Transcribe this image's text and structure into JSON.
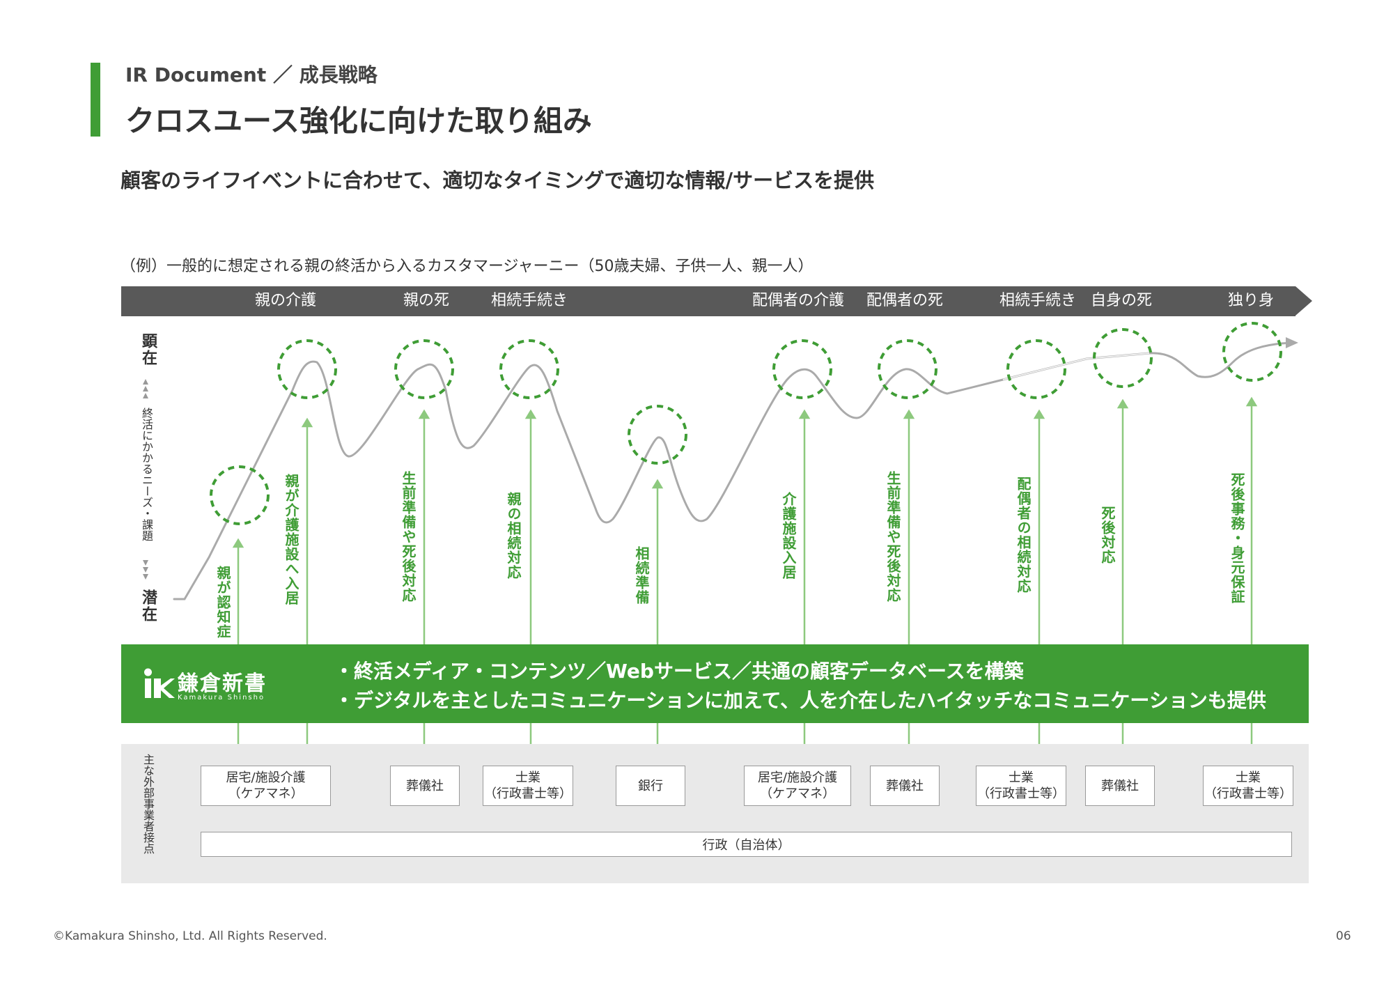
{
  "header": {
    "breadcrumb": "IR Document ／ 成長戦略",
    "title": "クロスユース強化に向けた取り組み",
    "subtitle": "顧客のライフイベントに合わせて、適切なタイミングで適切な情報/サービスを提供"
  },
  "journey": {
    "note": "（例）一般的に想定される親の終活から入るカスタマージャーニー（50歳夫婦、子供一人、親一人）",
    "events": [
      "親の介護",
      "親の死",
      "相続手続き",
      "配偶者の介護",
      "配偶者の死",
      "相続手続き",
      "自身の死",
      "独り身"
    ],
    "axis": {
      "top": "顕在",
      "bottom": "潜在",
      "middle": "終活にかかるニーズ・課題"
    },
    "needs": [
      "親が認知症",
      "親が介護施設へ入居",
      "生前準備や死後対応",
      "親の相続対応",
      "相続準備",
      "介護施設入居",
      "生前準備や死後対応",
      "配偶者の相続対応",
      "死後対応",
      "死後事務・身元保証"
    ]
  },
  "brand": {
    "logo_name": "鎌倉新書",
    "logo_roman": "Kamakura Shinsho",
    "line1": "・終活メディア・コンテンツ／Webサービス／共通の顧客データベースを構築",
    "line2": "・デジタルを主としたコミュニケーションに加えて、人を介在したハイタッチなコミュニケーションも提供"
  },
  "partners": {
    "label": "主な外部事業者接点",
    "boxes": [
      {
        "line1": "居宅/施設介護",
        "line2": "（ケアマネ）"
      },
      {
        "line1": "葬儀社",
        "line2": ""
      },
      {
        "line1": "士業",
        "line2": "（行政書士等）"
      },
      {
        "line1": "銀行",
        "line2": ""
      },
      {
        "line1": "居宅/施設介護",
        "line2": "（ケアマネ）"
      },
      {
        "line1": "葬儀社",
        "line2": ""
      },
      {
        "line1": "士業",
        "line2": "（行政書士等）"
      },
      {
        "line1": "葬儀社",
        "line2": ""
      },
      {
        "line1": "士業",
        "line2": "（行政書士等）"
      }
    ],
    "government": "行政（自治体）"
  },
  "footer": {
    "copyright": "©Kamakura Shinsho, Ltd. All Rights Reserved.",
    "page": "06"
  },
  "colors": {
    "accent": "#3f9d35",
    "dashed_circle": "#3f9d35",
    "arrow_green": "#8dc97e",
    "curve": "#aaaaaa",
    "timeline": "#595959"
  }
}
